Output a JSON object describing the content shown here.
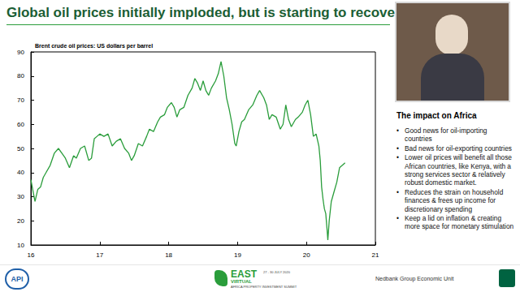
{
  "chart_data": {
    "type": "line",
    "title": "Brent crude oil prices: US dollars per barrel",
    "x": [
      16.0,
      16.04,
      16.06,
      16.1,
      16.14,
      16.18,
      16.22,
      16.28,
      16.34,
      16.4,
      16.45,
      16.5,
      16.56,
      16.62,
      16.66,
      16.72,
      16.78,
      16.84,
      16.88,
      16.92,
      16.96,
      17.0,
      17.06,
      17.12,
      17.18,
      17.24,
      17.3,
      17.36,
      17.42,
      17.46,
      17.5,
      17.56,
      17.62,
      17.68,
      17.72,
      17.78,
      17.84,
      17.88,
      17.94,
      17.98,
      18.04,
      18.08,
      18.12,
      18.16,
      18.22,
      18.28,
      18.34,
      18.38,
      18.42,
      18.46,
      18.5,
      18.54,
      18.58,
      18.62,
      18.68,
      18.72,
      18.76,
      18.8,
      18.84,
      18.88,
      18.92,
      18.96,
      18.98,
      19.02,
      19.06,
      19.1,
      19.16,
      19.22,
      19.28,
      19.32,
      19.38,
      19.42,
      19.46,
      19.5,
      19.56,
      19.62,
      19.66,
      19.7,
      19.74,
      19.78,
      19.84,
      19.88,
      19.94,
      19.98,
      20.02,
      20.06,
      20.1,
      20.14,
      20.18,
      20.2,
      20.22,
      20.24,
      20.26,
      20.28,
      20.3,
      20.31,
      20.33,
      20.36,
      20.4,
      20.44,
      20.48,
      20.52,
      20.56
    ],
    "values": [
      37,
      31,
      28,
      33,
      34,
      38,
      40,
      43,
      48,
      50,
      48,
      46,
      42,
      47,
      46,
      50,
      51,
      45,
      46,
      54,
      55,
      56,
      55,
      56,
      51,
      53,
      54,
      50,
      48,
      45,
      47,
      52,
      51,
      55,
      58,
      57,
      61,
      63,
      64,
      67,
      69,
      67,
      63,
      66,
      67,
      72,
      75,
      79,
      77,
      74,
      78,
      74,
      72,
      75,
      78,
      81,
      86,
      80,
      71,
      66,
      60,
      52,
      51,
      57,
      61,
      62,
      66,
      68,
      72,
      74,
      71,
      68,
      62,
      64,
      63,
      58,
      60,
      68,
      62,
      59,
      62,
      63,
      65,
      68,
      70,
      64,
      55,
      56,
      51,
      45,
      34,
      29,
      25,
      23,
      16,
      12,
      20,
      28,
      32,
      36,
      42,
      43,
      44
    ],
    "color": "#2a9d3b",
    "xlim": [
      16,
      21
    ],
    "xticks": [
      16,
      17,
      18,
      19,
      20,
      21
    ],
    "ylim": [
      10,
      90
    ],
    "yticks": [
      10,
      20,
      30,
      40,
      50,
      60,
      70,
      80,
      90
    ],
    "grid": false
  },
  "slide": {
    "title": "Global oil prices initially imploded, but is starting to recover",
    "panel_heading": "The impact on Africa",
    "bullets": [
      "Good news for oil-importing countries",
      "Bad news for oil-exporting countries",
      "Lower oil prices will benefit all those African countries, like Kenya, with a strong services sector & relatively robust domestic market.",
      "Reduces the strain on household finances & frees up income for discretionary spending",
      "Keep a lid on inflation & creating more space for monetary stimulation"
    ],
    "logo": "API",
    "event": {
      "name": "EAST",
      "tag": "VIRTUAL",
      "subtitle": "AFRICA PROPERTY INVESTMENT SUMMIT",
      "dates": "27 - 30 JULY 2020"
    },
    "source": "Nedbank Group Economic Unit"
  }
}
